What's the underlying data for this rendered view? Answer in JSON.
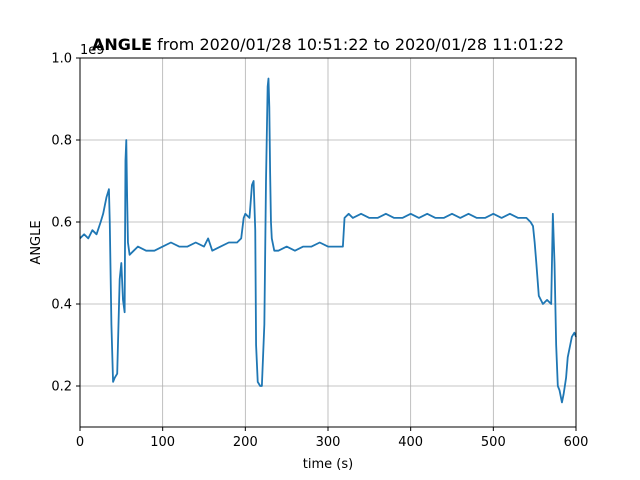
{
  "chart_data": {
    "type": "line",
    "title_bold": "ANGLE",
    "title_rest": " from 2020/01/28 10:51:22 to 2020/01/28 11:01:22",
    "xlabel": "time (s)",
    "ylabel": "ANGLE",
    "y_offset_label": "1e9",
    "xlim": [
      0,
      600
    ],
    "ylim": [
      0.1,
      1.0
    ],
    "x_ticks": [
      0,
      100,
      200,
      300,
      400,
      500,
      600
    ],
    "x_tick_labels": [
      "0",
      "100",
      "200",
      "300",
      "400",
      "500",
      "600"
    ],
    "y_ticks": [
      0.2,
      0.4,
      0.6,
      0.8,
      1.0
    ],
    "y_tick_labels": [
      "0.2",
      "0.4",
      "0.6",
      "0.8",
      "1.0"
    ],
    "grid": true,
    "line_color": "#1f77b4",
    "series": [
      {
        "x": [
          0,
          5,
          10,
          15,
          20,
          25,
          28,
          30,
          32,
          35,
          36,
          38,
          40,
          42,
          45,
          48,
          50,
          52,
          54,
          55,
          56,
          57,
          58,
          60,
          65,
          70,
          80,
          90,
          100,
          110,
          120,
          130,
          140,
          150,
          155,
          160,
          170,
          180,
          190,
          195,
          198,
          200,
          205,
          208,
          210,
          212,
          213,
          215,
          218,
          220,
          223,
          225,
          227,
          228,
          229,
          230,
          231,
          232,
          235,
          240,
          250,
          260,
          270,
          280,
          290,
          300,
          310,
          318,
          320,
          325,
          330,
          340,
          350,
          360,
          370,
          380,
          390,
          400,
          410,
          420,
          430,
          440,
          450,
          460,
          470,
          480,
          490,
          500,
          510,
          520,
          530,
          540,
          545,
          548,
          550,
          552,
          555,
          560,
          565,
          570,
          572,
          574,
          576,
          578,
          580,
          583,
          585,
          588,
          590,
          593,
          595,
          598,
          600
        ],
        "y": [
          0.56,
          0.57,
          0.56,
          0.58,
          0.57,
          0.6,
          0.62,
          0.64,
          0.66,
          0.68,
          0.6,
          0.35,
          0.21,
          0.22,
          0.23,
          0.46,
          0.5,
          0.41,
          0.38,
          0.75,
          0.8,
          0.66,
          0.55,
          0.52,
          0.53,
          0.54,
          0.53,
          0.53,
          0.54,
          0.55,
          0.54,
          0.54,
          0.55,
          0.54,
          0.56,
          0.53,
          0.54,
          0.55,
          0.55,
          0.56,
          0.61,
          0.62,
          0.61,
          0.69,
          0.7,
          0.58,
          0.3,
          0.21,
          0.2,
          0.2,
          0.35,
          0.7,
          0.93,
          0.95,
          0.88,
          0.72,
          0.6,
          0.56,
          0.53,
          0.53,
          0.54,
          0.53,
          0.54,
          0.54,
          0.55,
          0.54,
          0.54,
          0.54,
          0.61,
          0.62,
          0.61,
          0.62,
          0.61,
          0.61,
          0.62,
          0.61,
          0.61,
          0.62,
          0.61,
          0.62,
          0.61,
          0.61,
          0.62,
          0.61,
          0.62,
          0.61,
          0.61,
          0.62,
          0.61,
          0.62,
          0.61,
          0.61,
          0.6,
          0.59,
          0.55,
          0.5,
          0.42,
          0.4,
          0.41,
          0.4,
          0.62,
          0.5,
          0.3,
          0.2,
          0.19,
          0.16,
          0.18,
          0.22,
          0.27,
          0.3,
          0.32,
          0.33,
          0.32
        ]
      }
    ]
  }
}
